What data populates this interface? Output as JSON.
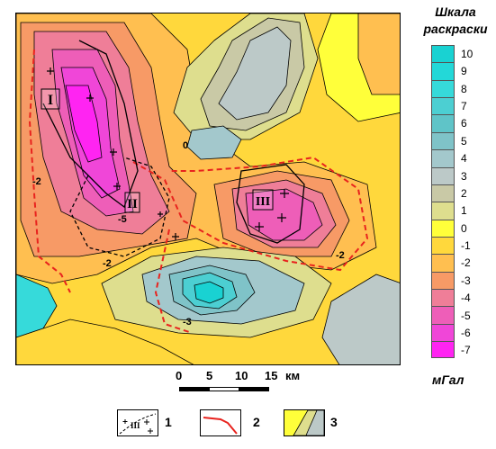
{
  "scale": {
    "title_line1": "Шкала",
    "title_line2": "раскраски",
    "units": "мГал",
    "levels": [
      {
        "label": "10",
        "color": "#19d2d2"
      },
      {
        "label": "9",
        "color": "#23d8d8"
      },
      {
        "label": "8",
        "color": "#36dada"
      },
      {
        "label": "7",
        "color": "#4ccfd2"
      },
      {
        "label": "6",
        "color": "#5fc4c8"
      },
      {
        "label": "5",
        "color": "#7fc3c8"
      },
      {
        "label": "4",
        "color": "#a3c8cc"
      },
      {
        "label": "3",
        "color": "#bcc9c8"
      },
      {
        "label": "2",
        "color": "#c9c9a6"
      },
      {
        "label": "1",
        "color": "#dede8e"
      },
      {
        "label": "0",
        "color": "#ffff3a"
      },
      {
        "label": "-1",
        "color": "#ffd83c"
      },
      {
        "label": "-2",
        "color": "#ffbf50"
      },
      {
        "label": "-3",
        "color": "#f79a66"
      },
      {
        "label": "-4",
        "color": "#ef7e98"
      },
      {
        "label": "-5",
        "color": "#ee5eb8"
      },
      {
        "label": "-6",
        "color": "#f046d8"
      },
      {
        "label": "-7",
        "color": "#ff24f2"
      }
    ]
  },
  "km_scale": {
    "ticks": [
      "0",
      "5",
      "10",
      "15"
    ],
    "unit": "км"
  },
  "map_labels": {
    "zone_I": "I",
    "zone_II": "II",
    "zone_III": "III",
    "contour_labels": [
      "-2",
      "-2",
      "-2",
      "0",
      "-5",
      "-3"
    ]
  },
  "map_legend": [
    {
      "number": "1",
      "symbol": "zone-boundary-icon",
      "symbol_text": "III"
    },
    {
      "number": "2",
      "symbol": "red-line-icon"
    },
    {
      "number": "3",
      "symbol": "color-contour-icon"
    }
  ],
  "colors": {
    "boundary_red": "#e8231e",
    "zone_black": "#000000",
    "background_yellow": "#ffff3a"
  }
}
